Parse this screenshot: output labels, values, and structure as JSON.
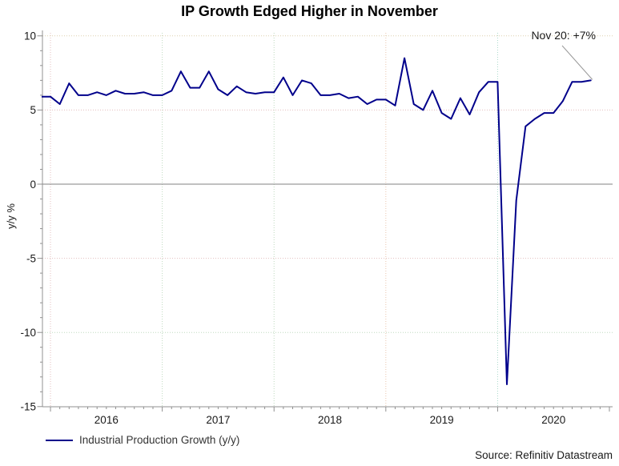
{
  "title": "IP Growth Edged Higher in November",
  "annotation": {
    "text": "Nov 20: +7%"
  },
  "legend": {
    "label": "Industrial Production Growth (y/y)"
  },
  "source": "Source: Refinitiv Datastream",
  "y_axis": {
    "label": "y/y %",
    "ticks": [
      10,
      5,
      0,
      -5,
      -10,
      -15
    ],
    "min": -15,
    "max": 10,
    "minor_step": 1
  },
  "x_axis": {
    "year_labels": [
      "2016",
      "2017",
      "2018",
      "2019",
      "2020"
    ],
    "start": "Dec 2015",
    "end": "Nov 2020"
  },
  "colors": {
    "line": "#00008B",
    "zero_line": "#808080",
    "axis": "#909090",
    "connector": "#999999"
  },
  "chart_data": {
    "type": "line",
    "title": "IP Growth Edged Higher in November",
    "xlabel": "",
    "ylabel": "y/y %",
    "ylim": [
      -15,
      10
    ],
    "grid": "dotted",
    "legend_position": "bottom-left",
    "annotation": "Nov 20: +7%",
    "series": [
      {
        "name": "Industrial Production Growth (y/y)",
        "x": [
          "Dec 2015",
          "Jan 2016",
          "Feb 2016",
          "Mar 2016",
          "Apr 2016",
          "May 2016",
          "Jun 2016",
          "Jul 2016",
          "Aug 2016",
          "Sep 2016",
          "Oct 2016",
          "Nov 2016",
          "Dec 2016",
          "Jan 2017",
          "Feb 2017",
          "Mar 2017",
          "Apr 2017",
          "May 2017",
          "Jun 2017",
          "Jul 2017",
          "Aug 2017",
          "Sep 2017",
          "Oct 2017",
          "Nov 2017",
          "Dec 2017",
          "Jan 2018",
          "Feb 2018",
          "Mar 2018",
          "Apr 2018",
          "May 2018",
          "Jun 2018",
          "Jul 2018",
          "Aug 2018",
          "Sep 2018",
          "Oct 2018",
          "Nov 2018",
          "Dec 2018",
          "Jan 2019",
          "Feb 2019",
          "Mar 2019",
          "Apr 2019",
          "May 2019",
          "Jun 2019",
          "Jul 2019",
          "Aug 2019",
          "Sep 2019",
          "Oct 2019",
          "Nov 2019",
          "Dec 2019",
          "Jan 2020",
          "Feb 2020",
          "Mar 2020",
          "Apr 2020",
          "May 2020",
          "Jun 2020",
          "Jul 2020",
          "Aug 2020",
          "Sep 2020",
          "Oct 2020",
          "Nov 2020"
        ],
        "values": [
          5.9,
          5.9,
          5.4,
          6.8,
          6.0,
          6.0,
          6.2,
          6.0,
          6.3,
          6.1,
          6.1,
          6.2,
          6.0,
          6.0,
          6.3,
          7.6,
          6.5,
          6.5,
          7.6,
          6.4,
          6.0,
          6.6,
          6.2,
          6.1,
          6.2,
          6.2,
          7.2,
          6.0,
          7.0,
          6.8,
          6.0,
          6.0,
          6.1,
          5.8,
          5.9,
          5.4,
          5.7,
          5.7,
          5.3,
          8.5,
          5.4,
          5.0,
          6.3,
          4.8,
          4.4,
          5.8,
          4.7,
          6.2,
          6.9,
          6.9,
          -13.5,
          -1.1,
          3.9,
          4.4,
          4.8,
          4.8,
          5.6,
          6.9,
          6.9,
          7.0
        ]
      }
    ]
  }
}
